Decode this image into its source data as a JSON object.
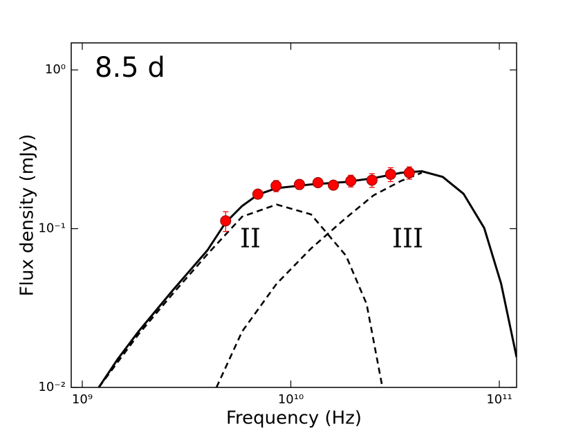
{
  "chart_data": {
    "type": "scatter",
    "annotations": [
      "8.5 d",
      "II",
      "III"
    ],
    "xlabel": "Frequency (Hz)",
    "ylabel": "Flux density (mJy)",
    "xscale": "log",
    "yscale": "log",
    "xlim": [
      885000000,
      121000000000
    ],
    "ylim": [
      0.01,
      1.48
    ],
    "xticks": [
      {
        "value": 1000000000,
        "label": "10⁹"
      },
      {
        "value": 10000000000,
        "label": "10¹⁰"
      },
      {
        "value": 100000000000,
        "label": "10¹¹"
      }
    ],
    "yticks": [
      {
        "value": 0.01,
        "label": "10⁻²"
      },
      {
        "value": 0.1,
        "label": "10⁻¹"
      },
      {
        "value": 1,
        "label": "10⁰"
      }
    ],
    "points": {
      "color": "#ff0000",
      "x": [
        4870000000,
        6950000000,
        8500000000,
        11000000000,
        13500000000,
        16000000000,
        19400000000,
        24500000000,
        30100000000,
        37000000000
      ],
      "values": [
        0.112,
        0.165,
        0.186,
        0.19,
        0.195,
        0.188,
        0.2,
        0.202,
        0.22,
        0.225
      ],
      "errors": [
        0.016,
        0.01,
        0.015,
        0.013,
        0.01,
        0.01,
        0.017,
        0.02,
        0.022,
        0.02
      ]
    },
    "curves": [
      {
        "style": "solid",
        "color": "#000000",
        "x": [
          1200000000,
          1480000000,
          1860000000,
          2720000000,
          3980000000,
          4860000000,
          5840000000,
          6960000000,
          8550000000,
          12500000000,
          18400000000,
          24900000000,
          33800000000,
          42500000000,
          53500000000,
          67300000000,
          84600000000,
          102000000000,
          121000000000
        ],
        "values": [
          0.01,
          0.0151,
          0.0225,
          0.041,
          0.073,
          0.109,
          0.139,
          0.164,
          0.18,
          0.19,
          0.197,
          0.208,
          0.225,
          0.23,
          0.212,
          0.166,
          0.101,
          0.045,
          0.0155
        ]
      },
      {
        "style": "dashed",
        "color": "#000000",
        "x": [
          1200000000,
          1860000000,
          2720000000,
          3980000000,
          5840000000,
          8550000000,
          12500000000,
          18400000000,
          23100000000,
          27500000000
        ],
        "values": [
          0.01,
          0.0216,
          0.039,
          0.069,
          0.119,
          0.142,
          0.123,
          0.0675,
          0.0335,
          0.01
        ]
      },
      {
        "style": "dashed",
        "color": "#000000",
        "x": [
          4400000000,
          5840000000,
          8550000000,
          12500000000,
          18400000000,
          24900000000,
          33800000000,
          42500000000
        ],
        "values": [
          0.01,
          0.0225,
          0.045,
          0.075,
          0.117,
          0.162,
          0.2,
          0.225
        ]
      }
    ]
  }
}
